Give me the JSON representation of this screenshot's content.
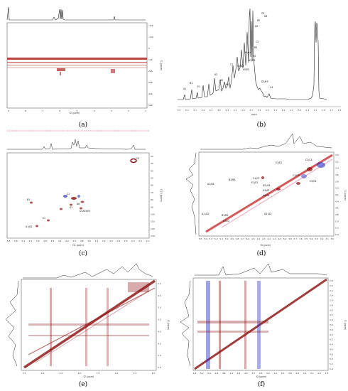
{
  "figure": {
    "captions": [
      "(a)",
      "(b)",
      "(c)",
      "(d)",
      "(e)",
      "(f)"
    ]
  },
  "panel_a": {
    "x_ticks": [
      "9",
      "8",
      "7",
      "6",
      "5",
      "4",
      "3",
      "2",
      "1"
    ],
    "x_label": "f2 (ppm)",
    "y_label": "f1 (ppm)",
    "y_ticks": [
      "-2e6",
      "-1e6",
      "0",
      "1e6",
      "2e6",
      "3e6",
      "4e6",
      "5e6"
    ]
  },
  "panel_b": {
    "x_label": "ppm",
    "x_ticks": [
      "5.5",
      "5.3",
      "5.1",
      "4.9",
      "4.7",
      "4.5",
      "4.3",
      "4.1",
      "3.9",
      "3.7",
      "3.5",
      "3.3",
      "3.1",
      "2.9",
      "2.7",
      "2.5",
      "2.3",
      "2.1",
      "1.9",
      "1.7",
      "1.5"
    ],
    "peak_labels": [
      "C5",
      "D4",
      "B5",
      "D2",
      "C2",
      "B3",
      "E4",
      "A6/A4",
      "A3/E3",
      "C1",
      "E2/B4",
      "A5/E5",
      "A2",
      "A1",
      "B1",
      "E1",
      "B2",
      "D3/E5",
      "C4",
      "A5"
    ]
  },
  "panel_c": {
    "x_label": "H1 (ppm)",
    "y_label": "C13 (ppm)",
    "x_ticks": [
      "5.8",
      "5.6",
      "5.4",
      "5.2",
      "5.0",
      "4.8",
      "4.6",
      "4.4",
      "4.2",
      "4.0",
      "3.8",
      "3.6",
      "3.4",
      "3.2",
      "3.0",
      "2.8",
      "2.6",
      "2.4",
      "2.2",
      "2.0"
    ],
    "y_ticks": [
      "20",
      "30",
      "40",
      "50",
      "60",
      "70",
      "80",
      "90",
      "100",
      "110",
      "120",
      "130"
    ],
    "peak_labels": [
      "C1",
      "A1",
      "B1",
      "E1",
      "A6",
      "D1/D3/E5",
      "A1/A2",
      "C5"
    ]
  },
  "panel_d": {
    "x_label": "f2 (ppm)",
    "y_label": "f1 (ppm)",
    "x_ticks": [
      "5.5",
      "5.4",
      "5.3",
      "5.2",
      "5.1",
      "5.0",
      "4.9",
      "4.8",
      "4.7",
      "4.6",
      "4.5",
      "4.4",
      "4.3",
      "4.2",
      "4.1",
      "4.0",
      "3.9",
      "3.8",
      "3.7",
      "3.6",
      "3.5",
      "3.4",
      "3.3",
      "3.2",
      "3.1",
      "3.0"
    ],
    "y_ticks": [
      "3.0",
      "3.2",
      "3.4",
      "3.6",
      "3.8",
      "4.0",
      "4.2",
      "4.4",
      "4.6",
      "4.8",
      "5.0",
      "5.2",
      "5.4"
    ],
    "peak_labels": [
      "E1/E2",
      "C2/C4",
      "A1/A6",
      "B1/B4",
      "C1/C2",
      "E1/E2",
      "A5 /A4",
      "A3/A2",
      "A6/A4",
      "C1/C3",
      "C3/C2",
      "A1 /A2",
      "B1/B2",
      "A3 /A2",
      "E1/E2"
    ]
  },
  "panel_e": {
    "x_label": "f2 (ppm)",
    "y_label": "f1 (ppm)",
    "x_ticks": [
      "5.5",
      "5.0",
      "4.5",
      "4.0",
      "3.5",
      "3.0",
      "2.5",
      "2.0"
    ],
    "y_ticks": [
      "2.0",
      "2.5",
      "3.0",
      "3.5",
      "4.0",
      "4.5",
      "5.0",
      "5.5"
    ]
  },
  "panel_f": {
    "x_label": "f2 (ppm)",
    "y_label": "f1 (ppm)",
    "x_ticks": [
      "5.4",
      "5.2",
      "5.0",
      "4.8",
      "4.6",
      "4.4",
      "4.2",
      "4.0",
      "3.8",
      "3.6",
      "3.4",
      "3.2",
      "3.0",
      "2.8",
      "2.6",
      "2.4",
      "2.2",
      "2.0",
      "1.8"
    ],
    "y_ticks": [
      "1.8",
      "2.0",
      "2.2",
      "2.4",
      "2.6",
      "2.8",
      "3.0",
      "3.2",
      "3.4",
      "3.6",
      "3.8",
      "4.0",
      "4.2",
      "4.4",
      "4.6",
      "4.8",
      "5.0",
      "5.2",
      "5.4"
    ]
  },
  "colors": {
    "positive": "#8b0d0d",
    "negative": "#2833c9",
    "trace": "#222222",
    "guide": "#e0467a"
  }
}
